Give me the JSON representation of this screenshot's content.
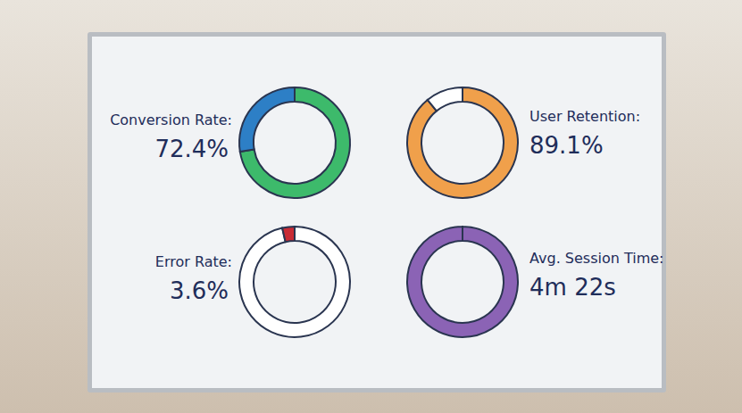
{
  "chart_data": [
    {
      "type": "pie",
      "title": "Conversion Rate:",
      "values": [
        72.4,
        27.6
      ],
      "value_labels": [
        "72.4%",
        null
      ],
      "colors": [
        "#3dba6b",
        "#2d7fc6"
      ]
    },
    {
      "type": "pie",
      "title": "User Retention:",
      "values": [
        89.1,
        10.9
      ],
      "value_labels": [
        "89.1%",
        null
      ],
      "colors": [
        "#f0a04b",
        "#ffffff"
      ]
    },
    {
      "type": "pie",
      "title": "Error Rate:",
      "values": [
        96.4,
        3.6
      ],
      "value_labels": [
        null,
        "3.6%"
      ],
      "colors": [
        "#ffffff",
        "#c92b35"
      ]
    },
    {
      "type": "pie",
      "title": "Avg. Session Time:",
      "values": [
        262
      ],
      "value_labels": [
        "4m 22s"
      ],
      "colors": [
        "#8b63b5"
      ]
    }
  ]
}
